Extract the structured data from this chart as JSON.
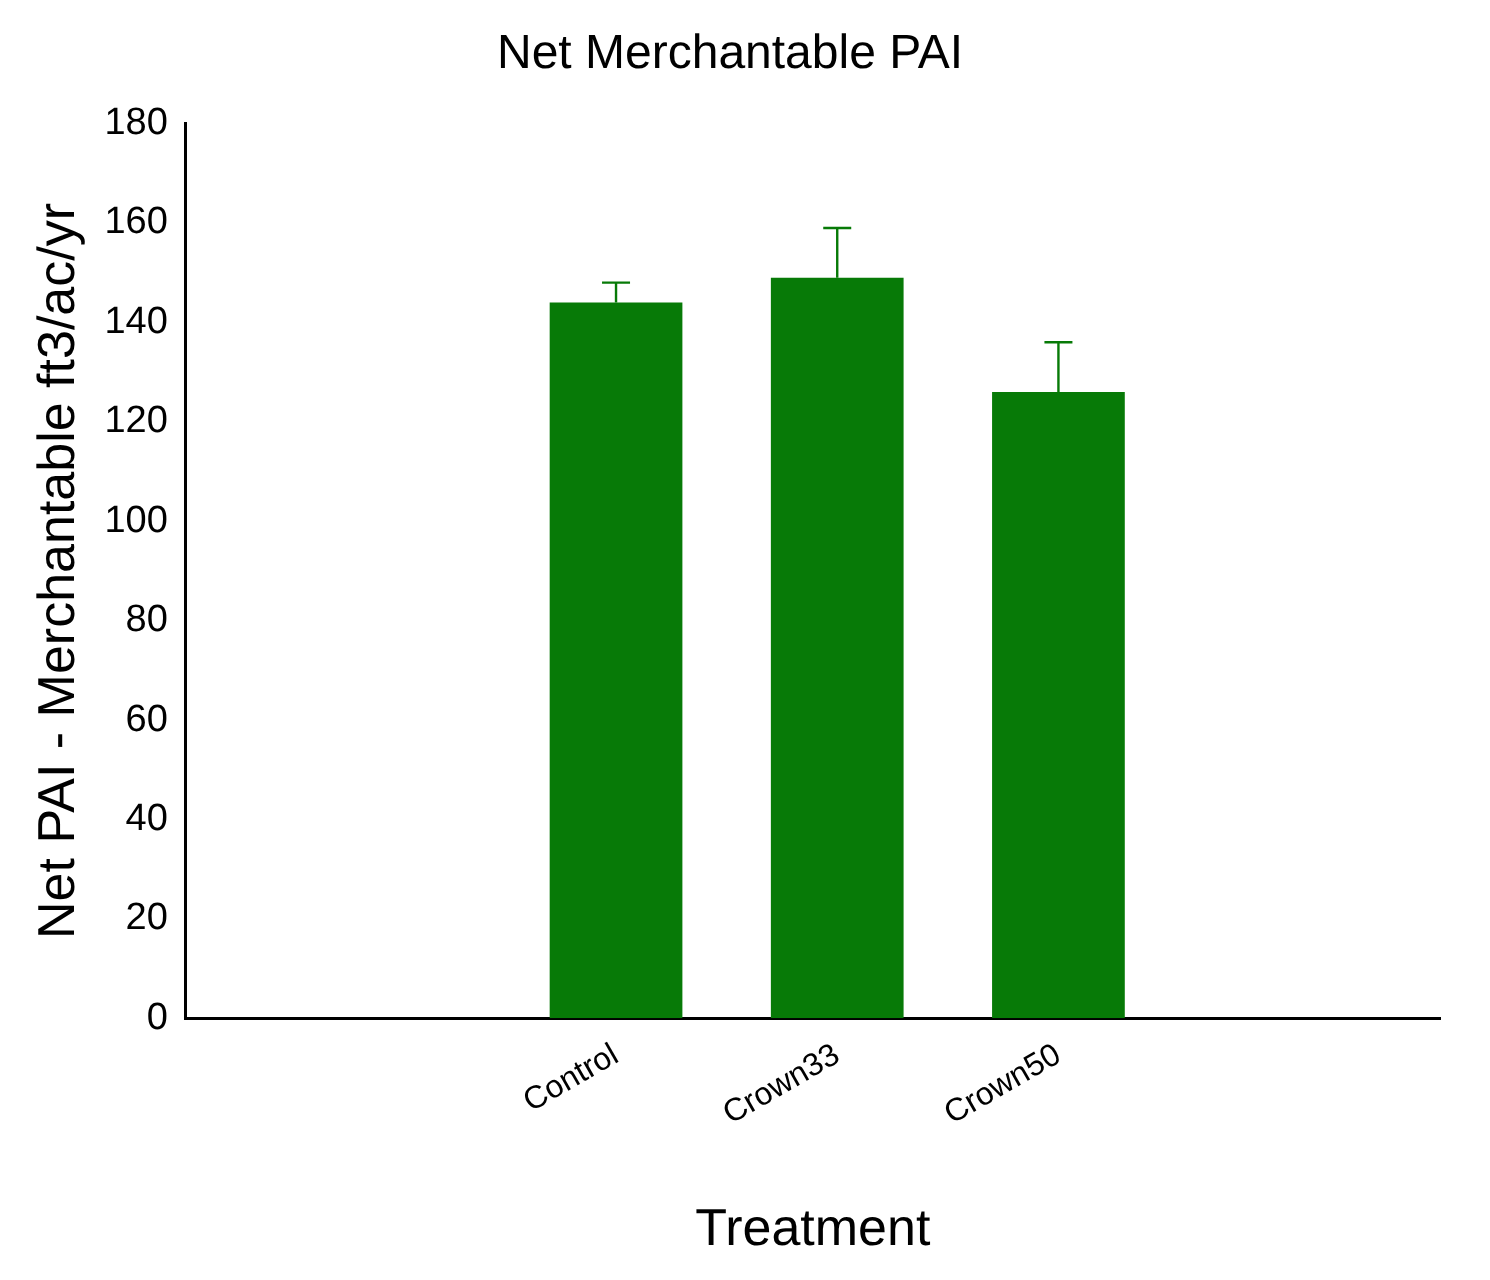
{
  "chart_data": {
    "type": "bar",
    "title": "Net Merchantable PAI",
    "xlabel": "Treatment",
    "ylabel": "Net PAI - Merchantable ft3/ac/yr",
    "categories": [
      "Control",
      "Crown33",
      "Crown50"
    ],
    "values": [
      144,
      149,
      126
    ],
    "errors": [
      4,
      10,
      10
    ],
    "color": "#077a07",
    "ylim": [
      0,
      180
    ],
    "yticks": [
      0,
      20,
      40,
      60,
      80,
      100,
      120,
      140,
      160,
      180
    ],
    "grid": false,
    "legend": false
  }
}
